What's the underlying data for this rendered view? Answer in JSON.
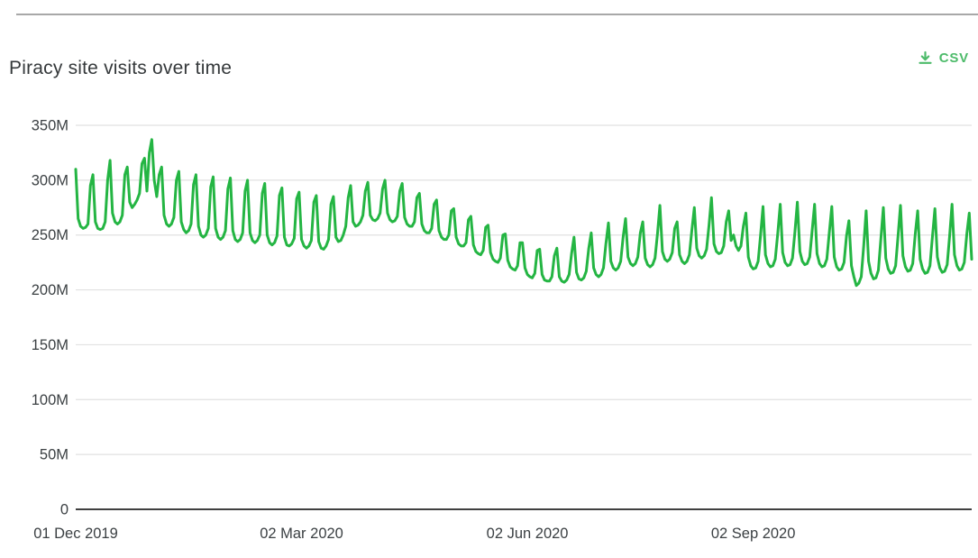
{
  "page": {
    "title": "Piracy site visits over time"
  },
  "toolbar": {
    "csv_label": "CSV",
    "csv_icon": "download-icon"
  },
  "colors": {
    "line": "#24b543",
    "csv_green": "#4dbb6a",
    "grid": "#e1e1e1",
    "axis": "#242424",
    "title_text": "#35393b",
    "tick_text": "#3b4043",
    "top_rule": "#a8a8a8",
    "background": "#ffffff"
  },
  "chart_data": {
    "type": "line",
    "title": "Piracy site visits over time",
    "xlabel": "",
    "ylabel": "",
    "unit": "visits per day",
    "frequency": "daily",
    "start_date": "2019-12-01",
    "end_date": "2020-11-30",
    "grid": "horizontal",
    "legend_position": "none",
    "ylim_millions": [
      0,
      350
    ],
    "y_ticks": [
      "0",
      "50M",
      "100M",
      "150M",
      "200M",
      "250M",
      "300M",
      "350M"
    ],
    "x_ticks": [
      {
        "label": "01 Dec 2019",
        "day": 0
      },
      {
        "label": "02 Mar 2020",
        "day": 92
      },
      {
        "label": "02 Jun 2020",
        "day": 184
      },
      {
        "label": "02 Sep 2020",
        "day": 276
      }
    ],
    "series": [
      {
        "name": "Piracy site visits",
        "values_millions": [
          310,
          265,
          258,
          256,
          257,
          260,
          295,
          305,
          262,
          256,
          255,
          256,
          262,
          300,
          318,
          270,
          262,
          260,
          262,
          268,
          305,
          312,
          280,
          275,
          278,
          282,
          288,
          315,
          320,
          290,
          325,
          337,
          300,
          285,
          305,
          312,
          268,
          260,
          258,
          260,
          266,
          300,
          308,
          262,
          255,
          252,
          254,
          260,
          296,
          305,
          258,
          250,
          248,
          250,
          256,
          294,
          303,
          256,
          248,
          246,
          248,
          254,
          292,
          302,
          254,
          246,
          244,
          246,
          252,
          290,
          300,
          252,
          245,
          243,
          245,
          250,
          288,
          297,
          250,
          243,
          241,
          243,
          249,
          286,
          293,
          248,
          241,
          240,
          242,
          247,
          283,
          289,
          246,
          240,
          238,
          240,
          245,
          280,
          286,
          244,
          238,
          237,
          240,
          246,
          278,
          285,
          248,
          244,
          245,
          250,
          258,
          284,
          295,
          262,
          258,
          259,
          262,
          268,
          290,
          298,
          268,
          264,
          263,
          265,
          270,
          292,
          300,
          270,
          264,
          262,
          263,
          267,
          290,
          297,
          266,
          260,
          258,
          258,
          262,
          284,
          288,
          260,
          254,
          252,
          252,
          256,
          278,
          282,
          254,
          248,
          246,
          246,
          250,
          272,
          274,
          248,
          242,
          240,
          240,
          243,
          264,
          267,
          241,
          235,
          233,
          232,
          236,
          257,
          259,
          234,
          228,
          226,
          225,
          229,
          250,
          251,
          227,
          221,
          219,
          218,
          222,
          243,
          243,
          220,
          214,
          212,
          211,
          215,
          236,
          237,
          214,
          209,
          208,
          208,
          212,
          231,
          238,
          212,
          208,
          207,
          209,
          214,
          233,
          248,
          216,
          210,
          209,
          211,
          217,
          238,
          252,
          220,
          214,
          212,
          214,
          220,
          242,
          261,
          226,
          220,
          218,
          220,
          226,
          248,
          265,
          230,
          224,
          222,
          224,
          230,
          252,
          262,
          229,
          223,
          221,
          223,
          229,
          251,
          277,
          235,
          228,
          226,
          228,
          234,
          256,
          262,
          232,
          226,
          224,
          226,
          232,
          254,
          275,
          238,
          231,
          229,
          231,
          237,
          259,
          284,
          242,
          235,
          233,
          234,
          240,
          262,
          272,
          245,
          250,
          240,
          236,
          240,
          258,
          270,
          230,
          222,
          219,
          220,
          226,
          250,
          276,
          232,
          224,
          221,
          222,
          228,
          252,
          278,
          234,
          225,
          222,
          223,
          229,
          253,
          280,
          235,
          226,
          223,
          224,
          230,
          254,
          278,
          233,
          224,
          221,
          222,
          228,
          252,
          276,
          230,
          221,
          218,
          219,
          225,
          249,
          263,
          222,
          212,
          204,
          206,
          212,
          240,
          272,
          226,
          215,
          210,
          211,
          218,
          246,
          275,
          229,
          219,
          215,
          216,
          222,
          249,
          277,
          231,
          221,
          217,
          218,
          224,
          251,
          272,
          228,
          219,
          215,
          216,
          222,
          248,
          274,
          230,
          220,
          216,
          217,
          223,
          249,
          278,
          232,
          222,
          218,
          219,
          225,
          251,
          270,
          228
        ]
      }
    ]
  }
}
